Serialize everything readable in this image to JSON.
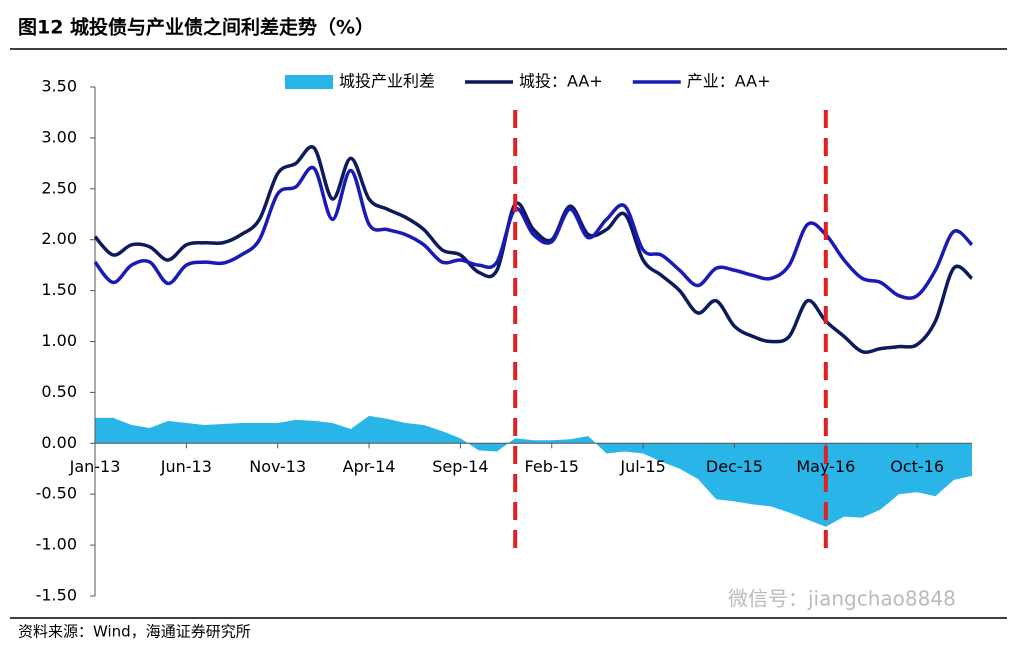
{
  "chart_data": {
    "type": "line",
    "title": "图12 城投债与产业债之间利差走势（%）",
    "source": "资料来源：Wind，海通证券研究所",
    "watermark": "微信号：jiangchao8848",
    "categories": [
      "Jan-13",
      null,
      null,
      null,
      null,
      "Jun-13",
      null,
      null,
      null,
      null,
      "Nov-13",
      null,
      null,
      null,
      null,
      "Apr-14",
      null,
      null,
      null,
      null,
      "Sep-14",
      null,
      null,
      null,
      null,
      "Feb-15",
      null,
      null,
      null,
      null,
      "Jul-15",
      null,
      null,
      null,
      null,
      "Dec-15",
      null,
      null,
      null,
      null,
      "May-16",
      null,
      null,
      null,
      null,
      "Oct-16",
      null,
      null,
      null
    ],
    "series": [
      {
        "name": "城投产业利差",
        "kind": "area",
        "color": "#29b5e8",
        "values": [
          0.25,
          0.25,
          0.18,
          0.15,
          0.22,
          0.2,
          0.18,
          0.19,
          0.2,
          0.2,
          0.2,
          0.23,
          0.22,
          0.2,
          0.14,
          0.27,
          0.24,
          0.2,
          0.18,
          0.12,
          0.05,
          -0.07,
          -0.08,
          0.05,
          0.03,
          0.03,
          0.04,
          0.07,
          -0.1,
          -0.08,
          -0.1,
          -0.18,
          -0.25,
          -0.35,
          -0.55,
          -0.57,
          -0.6,
          -0.62,
          -0.68,
          -0.75,
          -0.82,
          -0.72,
          -0.73,
          -0.65,
          -0.5,
          -0.48,
          -0.52,
          -0.36,
          -0.32
        ]
      },
      {
        "name": "城投：AA+",
        "kind": "line",
        "color": "#0d1a5c",
        "values": [
          2.03,
          1.85,
          1.95,
          1.93,
          1.8,
          1.95,
          1.97,
          1.97,
          2.05,
          2.2,
          2.65,
          2.75,
          2.9,
          2.4,
          2.8,
          2.4,
          2.3,
          2.22,
          2.1,
          1.9,
          1.85,
          1.68,
          1.7,
          2.35,
          2.1,
          2.0,
          2.33,
          2.05,
          2.1,
          2.25,
          1.8,
          1.65,
          1.5,
          1.28,
          1.4,
          1.15,
          1.05,
          1.0,
          1.05,
          1.4,
          1.2,
          1.05,
          0.9,
          0.93,
          0.95,
          0.97,
          1.2,
          1.72,
          1.62
        ]
      },
      {
        "name": "产业：AA+",
        "kind": "line",
        "color": "#1a1ab8",
        "values": [
          1.78,
          1.58,
          1.75,
          1.78,
          1.57,
          1.75,
          1.78,
          1.77,
          1.85,
          2.0,
          2.45,
          2.52,
          2.7,
          2.2,
          2.68,
          2.15,
          2.1,
          2.05,
          1.95,
          1.78,
          1.8,
          1.75,
          1.78,
          2.3,
          2.05,
          1.98,
          2.3,
          2.02,
          2.2,
          2.33,
          1.9,
          1.85,
          1.7,
          1.55,
          1.72,
          1.7,
          1.65,
          1.62,
          1.75,
          2.15,
          2.05,
          1.8,
          1.62,
          1.58,
          1.45,
          1.45,
          1.7,
          2.08,
          1.95
        ]
      }
    ],
    "vlines": [
      23,
      40
    ],
    "vline_color": "#e02020",
    "ylim": [
      -1.5,
      3.5
    ],
    "yticks": [
      {
        "value": 3.5,
        "label": "3.50"
      },
      {
        "value": 3,
        "label": "3.00"
      },
      {
        "value": 2.5,
        "label": "2.50"
      },
      {
        "value": 2,
        "label": "2.00"
      },
      {
        "value": 1.5,
        "label": "1.50"
      },
      {
        "value": 1,
        "label": "1.00"
      },
      {
        "value": 0.5,
        "label": "0.50"
      },
      {
        "value": 0,
        "label": "0.00"
      },
      {
        "value": -0.5,
        "label": "-0.50"
      },
      {
        "value": -1,
        "label": "-1.00"
      },
      {
        "value": -1.5,
        "label": "-1.50"
      }
    ]
  }
}
